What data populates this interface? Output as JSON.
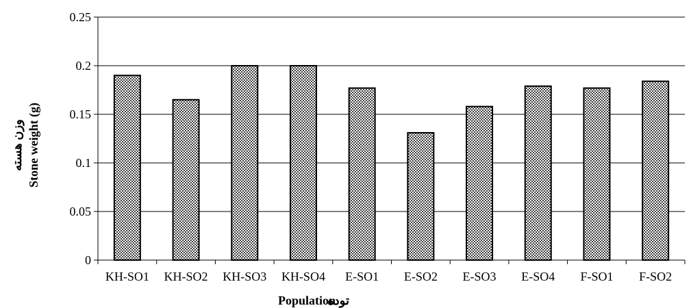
{
  "chart_data": {
    "type": "bar",
    "title": "",
    "xlabel": "Population",
    "xlabel_fa": "توده",
    "ylabel": "Stone weight (g)",
    "ylabel_fa": "وزن هسته",
    "categories": [
      "KH-SO1",
      "KH-SO2",
      "KH-SO3",
      "KH-SO4",
      "E-SO1",
      "E-SO2",
      "E-SO3",
      "E-SO4",
      "F-SO1",
      "F-SO2"
    ],
    "values": [
      0.19,
      0.165,
      0.2,
      0.2,
      0.177,
      0.131,
      0.158,
      0.179,
      0.177,
      0.184
    ],
    "ylim": [
      0,
      0.25
    ],
    "yticks": [
      "0",
      "0.05",
      "0.1",
      "0.15",
      "0.2",
      "0.25"
    ],
    "grid": true,
    "legend": "none",
    "colors": {
      "bar_fill": "#c8c8c8",
      "bar_stroke": "#000000",
      "grid": "#000000"
    }
  }
}
